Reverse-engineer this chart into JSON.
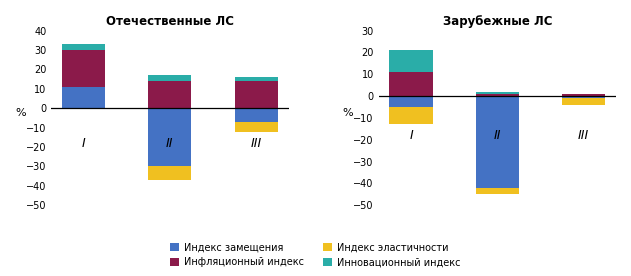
{
  "title_left": "Отечественные ЛС",
  "title_right": "Зарубежные ЛС",
  "ylabel": "%",
  "categories": [
    "I",
    "II",
    "III"
  ],
  "colors": {
    "zameshenia": "#4472C4",
    "inflyacionnyi": "#8B1A4A",
    "elastichnosti": "#F0C020",
    "innovacionnyi": "#2AADA8"
  },
  "legend_labels": {
    "zameshenia": "Индекс замещения",
    "inflyacionnyi": "Инфляционный индекс",
    "elastichnosti": "Индекс эластичности",
    "innovacionnyi": "Инновационный индекс"
  },
  "left_data": {
    "zameshenia": [
      11,
      -30,
      -7
    ],
    "inflyacionnyi": [
      19,
      14,
      14
    ],
    "elastichnosti": [
      0,
      -7,
      -5
    ],
    "innovacionnyi": [
      3,
      3,
      2
    ]
  },
  "right_data": {
    "zameshenia": [
      -5,
      -42,
      -1
    ],
    "inflyacionnyi": [
      11,
      1,
      1
    ],
    "elastichnosti": [
      -8,
      -3,
      -3
    ],
    "innovacionnyi": [
      10,
      1,
      0
    ]
  },
  "ylim_left": [
    -50,
    40
  ],
  "ylim_right": [
    -50,
    30
  ],
  "yticks_left": [
    -50,
    -40,
    -30,
    -20,
    -10,
    0,
    10,
    20,
    30,
    40
  ],
  "yticks_right": [
    -50,
    -40,
    -30,
    -20,
    -10,
    0,
    10,
    20,
    30
  ],
  "xlabel_y_left": -18,
  "xlabel_y_right": -18
}
